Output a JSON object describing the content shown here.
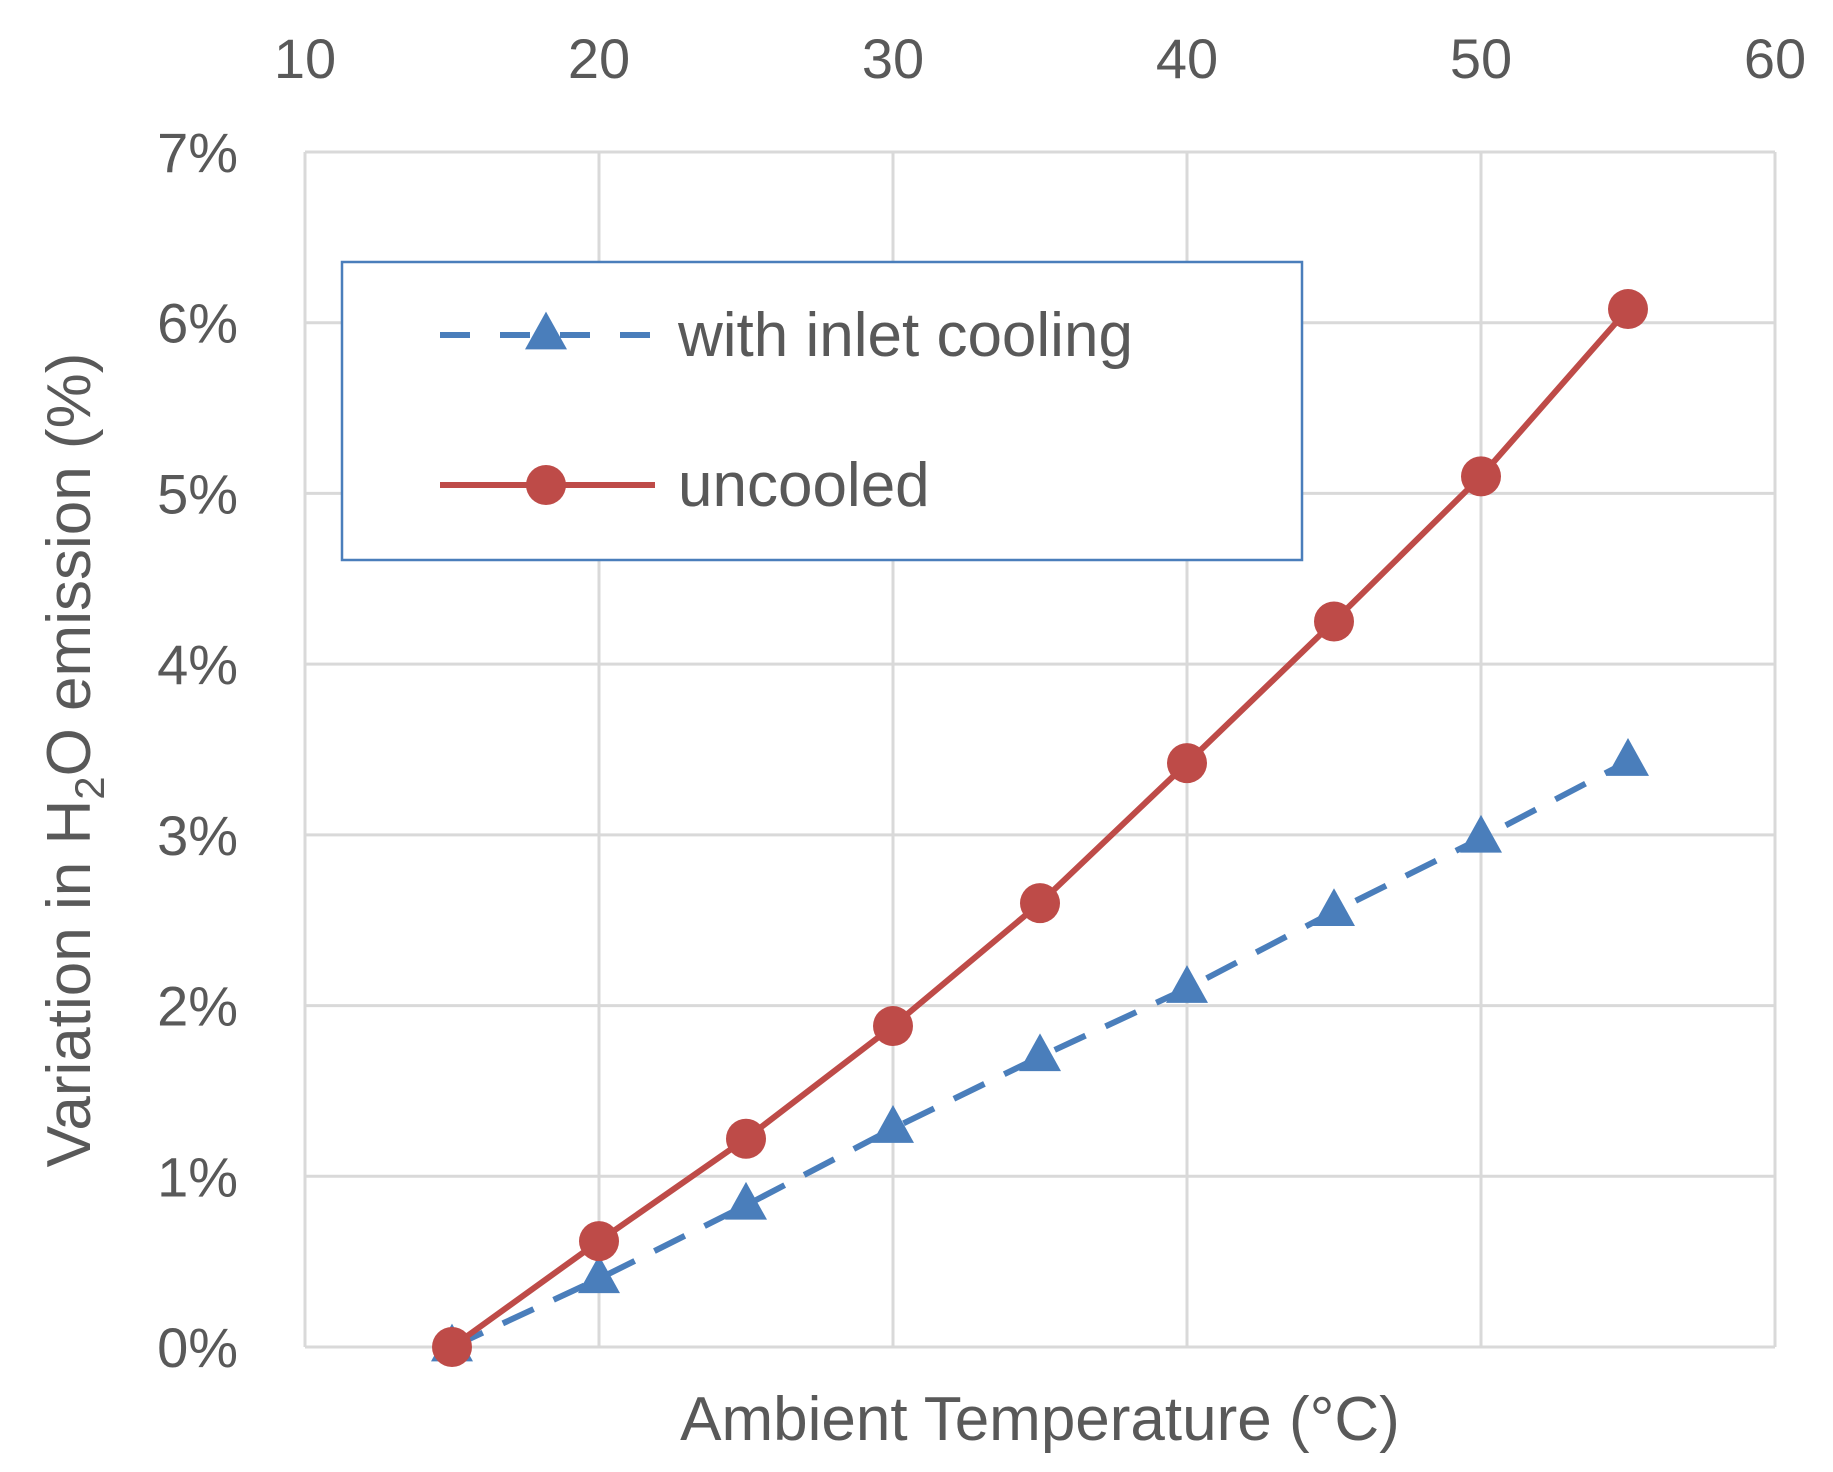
{
  "chart_data": {
    "type": "line",
    "title": "",
    "xlabel": "Ambient  Temperature (°C)",
    "ylabel": {
      "prefix": "Variation in H",
      "subscript": "2",
      "suffix": "O emission (%)"
    },
    "xlim": [
      10,
      60
    ],
    "ylim": [
      0,
      7
    ],
    "x_ticks": [
      "10",
      "20",
      "30",
      "40",
      "50",
      "60"
    ],
    "y_ticks": [
      "0%",
      "1%",
      "2%",
      "3%",
      "4%",
      "5%",
      "6%",
      "7%"
    ],
    "x_tick_values": [
      10,
      20,
      30,
      40,
      50,
      60
    ],
    "y_tick_values": [
      0,
      1,
      2,
      3,
      4,
      5,
      6,
      7
    ],
    "grid": true,
    "x_axis_position": "top",
    "legend_position": "top-left",
    "x": [
      15,
      20,
      25,
      30,
      35,
      40,
      45,
      50,
      55
    ],
    "series": [
      {
        "name": "with inlet cooling",
        "values": [
          0.0,
          0.4,
          0.83,
          1.28,
          1.7,
          2.1,
          2.55,
          2.98,
          3.43
        ],
        "color": "#4a7ebb",
        "line": "dashed",
        "marker": "triangle"
      },
      {
        "name": "uncooled",
        "values": [
          0.0,
          0.62,
          1.22,
          1.88,
          2.6,
          3.42,
          4.25,
          5.1,
          6.08
        ],
        "color": "#be4b48",
        "line": "solid",
        "marker": "circle"
      }
    ]
  }
}
